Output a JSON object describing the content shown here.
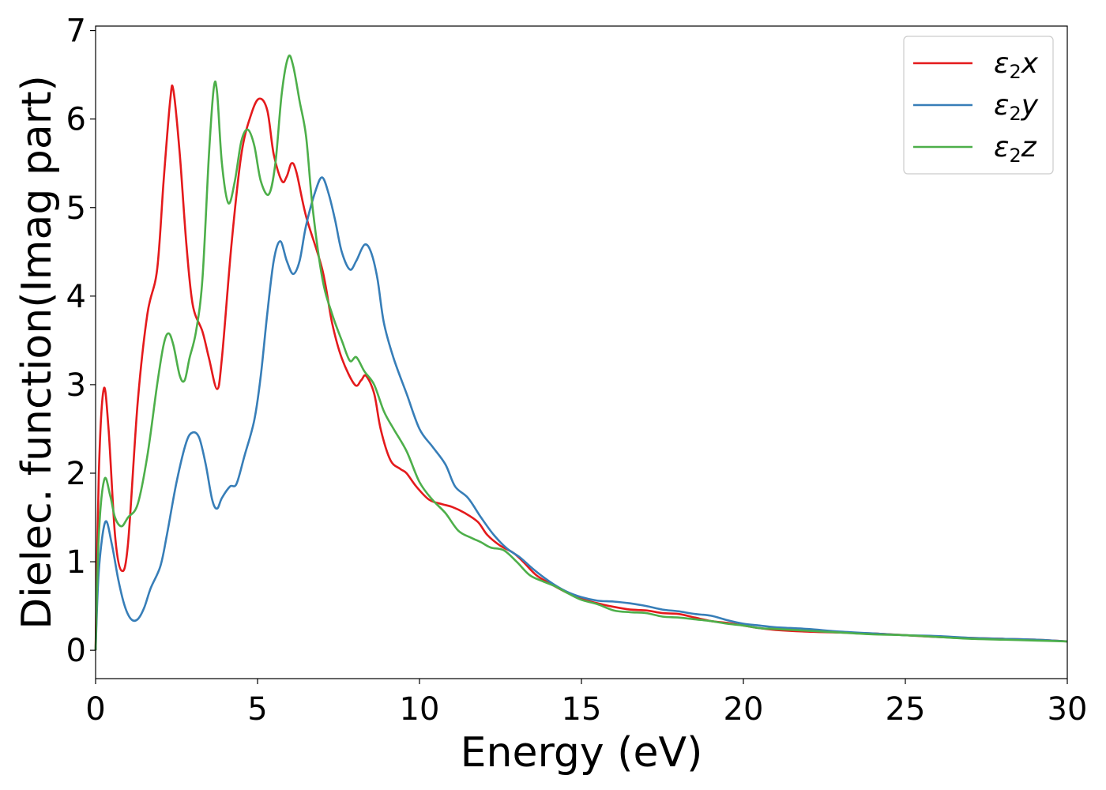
{
  "chart_data": {
    "type": "line",
    "xlabel": "Energy (eV)",
    "ylabel": "Dielec. function(Imag part)",
    "xlim": [
      0,
      30
    ],
    "ylim": [
      -0.32,
      7.05
    ],
    "xticks": [
      0,
      5,
      10,
      15,
      20,
      25,
      30
    ],
    "yticks": [
      0,
      1,
      2,
      3,
      4,
      5,
      6,
      7
    ],
    "legend_position": "top-right",
    "grid": false,
    "series": [
      {
        "name": "ε₂x",
        "legend_base": "ε",
        "legend_sub": "2",
        "legend_var": "x",
        "color": "#e41a1c",
        "points": [
          [
            0,
            0
          ],
          [
            0.1,
            2.0
          ],
          [
            0.25,
            2.95
          ],
          [
            0.4,
            2.5
          ],
          [
            0.6,
            1.3
          ],
          [
            0.8,
            0.9
          ],
          [
            1.0,
            1.2
          ],
          [
            1.3,
            2.8
          ],
          [
            1.6,
            3.8
          ],
          [
            1.9,
            4.3
          ],
          [
            2.1,
            5.3
          ],
          [
            2.3,
            6.2
          ],
          [
            2.4,
            6.33
          ],
          [
            2.6,
            5.6
          ],
          [
            2.8,
            4.6
          ],
          [
            3.0,
            3.9
          ],
          [
            3.3,
            3.6
          ],
          [
            3.5,
            3.3
          ],
          [
            3.75,
            2.95
          ],
          [
            3.9,
            3.3
          ],
          [
            4.2,
            4.6
          ],
          [
            4.5,
            5.6
          ],
          [
            4.8,
            6.05
          ],
          [
            5.05,
            6.23
          ],
          [
            5.3,
            6.1
          ],
          [
            5.5,
            5.6
          ],
          [
            5.75,
            5.3
          ],
          [
            5.9,
            5.35
          ],
          [
            6.05,
            5.5
          ],
          [
            6.2,
            5.4
          ],
          [
            6.5,
            4.9
          ],
          [
            7.0,
            4.3
          ],
          [
            7.3,
            3.7
          ],
          [
            7.6,
            3.3
          ],
          [
            8.0,
            3.0
          ],
          [
            8.2,
            3.05
          ],
          [
            8.35,
            3.1
          ],
          [
            8.6,
            2.9
          ],
          [
            8.8,
            2.5
          ],
          [
            9.1,
            2.15
          ],
          [
            9.4,
            2.05
          ],
          [
            9.6,
            2.0
          ],
          [
            9.9,
            1.85
          ],
          [
            10.3,
            1.7
          ],
          [
            10.7,
            1.65
          ],
          [
            11.0,
            1.62
          ],
          [
            11.4,
            1.55
          ],
          [
            11.8,
            1.45
          ],
          [
            12.1,
            1.3
          ],
          [
            12.5,
            1.18
          ],
          [
            12.9,
            1.1
          ],
          [
            13.2,
            1.0
          ],
          [
            13.6,
            0.85
          ],
          [
            14.0,
            0.76
          ],
          [
            14.5,
            0.66
          ],
          [
            15.0,
            0.58
          ],
          [
            15.5,
            0.53
          ],
          [
            16.0,
            0.49
          ],
          [
            16.5,
            0.46
          ],
          [
            17.0,
            0.45
          ],
          [
            17.5,
            0.42
          ],
          [
            18.0,
            0.41
          ],
          [
            18.5,
            0.37
          ],
          [
            19.0,
            0.33
          ],
          [
            19.5,
            0.31
          ],
          [
            20.0,
            0.28
          ],
          [
            20.5,
            0.25
          ],
          [
            21.0,
            0.23
          ],
          [
            22.0,
            0.21
          ],
          [
            23.0,
            0.2
          ],
          [
            24.0,
            0.19
          ],
          [
            25.0,
            0.17
          ],
          [
            26.0,
            0.15
          ],
          [
            27.0,
            0.14
          ],
          [
            28.0,
            0.13
          ],
          [
            29.0,
            0.12
          ],
          [
            30.0,
            0.1
          ]
        ]
      },
      {
        "name": "ε₂y",
        "legend_base": "ε",
        "legend_sub": "2",
        "legend_var": "y",
        "color": "#377eb8",
        "points": [
          [
            0,
            0
          ],
          [
            0.1,
            0.9
          ],
          [
            0.3,
            1.45
          ],
          [
            0.5,
            1.2
          ],
          [
            0.7,
            0.8
          ],
          [
            0.9,
            0.5
          ],
          [
            1.1,
            0.35
          ],
          [
            1.3,
            0.35
          ],
          [
            1.5,
            0.48
          ],
          [
            1.7,
            0.7
          ],
          [
            2.0,
            0.95
          ],
          [
            2.2,
            1.3
          ],
          [
            2.5,
            1.9
          ],
          [
            2.8,
            2.35
          ],
          [
            3.0,
            2.46
          ],
          [
            3.2,
            2.4
          ],
          [
            3.4,
            2.1
          ],
          [
            3.6,
            1.7
          ],
          [
            3.75,
            1.6
          ],
          [
            3.9,
            1.72
          ],
          [
            4.15,
            1.85
          ],
          [
            4.35,
            1.88
          ],
          [
            4.6,
            2.2
          ],
          [
            4.9,
            2.6
          ],
          [
            5.1,
            3.1
          ],
          [
            5.3,
            3.8
          ],
          [
            5.5,
            4.4
          ],
          [
            5.7,
            4.62
          ],
          [
            5.9,
            4.4
          ],
          [
            6.1,
            4.25
          ],
          [
            6.3,
            4.4
          ],
          [
            6.5,
            4.8
          ],
          [
            6.8,
            5.2
          ],
          [
            7.0,
            5.34
          ],
          [
            7.2,
            5.15
          ],
          [
            7.4,
            4.85
          ],
          [
            7.6,
            4.5
          ],
          [
            7.85,
            4.3
          ],
          [
            8.05,
            4.4
          ],
          [
            8.3,
            4.58
          ],
          [
            8.5,
            4.5
          ],
          [
            8.7,
            4.2
          ],
          [
            8.9,
            3.7
          ],
          [
            9.2,
            3.3
          ],
          [
            9.6,
            2.9
          ],
          [
            10.0,
            2.5
          ],
          [
            10.4,
            2.3
          ],
          [
            10.8,
            2.1
          ],
          [
            11.1,
            1.85
          ],
          [
            11.5,
            1.72
          ],
          [
            11.9,
            1.5
          ],
          [
            12.3,
            1.3
          ],
          [
            12.7,
            1.15
          ],
          [
            13.1,
            1.05
          ],
          [
            13.5,
            0.92
          ],
          [
            14.0,
            0.78
          ],
          [
            14.5,
            0.67
          ],
          [
            15.0,
            0.6
          ],
          [
            15.5,
            0.56
          ],
          [
            16.0,
            0.55
          ],
          [
            16.5,
            0.53
          ],
          [
            17.0,
            0.5
          ],
          [
            17.5,
            0.46
          ],
          [
            18.0,
            0.44
          ],
          [
            18.5,
            0.41
          ],
          [
            19.0,
            0.39
          ],
          [
            19.5,
            0.34
          ],
          [
            20.0,
            0.3
          ],
          [
            20.5,
            0.28
          ],
          [
            21.0,
            0.26
          ],
          [
            22.0,
            0.24
          ],
          [
            23.0,
            0.21
          ],
          [
            24.0,
            0.19
          ],
          [
            25.0,
            0.17
          ],
          [
            26.0,
            0.16
          ],
          [
            27.0,
            0.14
          ],
          [
            28.0,
            0.13
          ],
          [
            29.0,
            0.12
          ],
          [
            30.0,
            0.1
          ]
        ]
      },
      {
        "name": "ε₂z",
        "legend_base": "ε",
        "legend_sub": "2",
        "legend_var": "z",
        "color": "#4daf4a",
        "points": [
          [
            0,
            0
          ],
          [
            0.1,
            1.3
          ],
          [
            0.27,
            1.93
          ],
          [
            0.45,
            1.75
          ],
          [
            0.6,
            1.5
          ],
          [
            0.8,
            1.4
          ],
          [
            1.0,
            1.5
          ],
          [
            1.3,
            1.65
          ],
          [
            1.6,
            2.2
          ],
          [
            1.9,
            3.0
          ],
          [
            2.1,
            3.45
          ],
          [
            2.25,
            3.58
          ],
          [
            2.4,
            3.45
          ],
          [
            2.6,
            3.1
          ],
          [
            2.75,
            3.05
          ],
          [
            2.9,
            3.3
          ],
          [
            3.1,
            3.6
          ],
          [
            3.3,
            4.2
          ],
          [
            3.5,
            5.6
          ],
          [
            3.65,
            6.35
          ],
          [
            3.75,
            6.3
          ],
          [
            3.9,
            5.5
          ],
          [
            4.1,
            5.05
          ],
          [
            4.3,
            5.3
          ],
          [
            4.5,
            5.75
          ],
          [
            4.7,
            5.88
          ],
          [
            4.9,
            5.7
          ],
          [
            5.1,
            5.3
          ],
          [
            5.35,
            5.15
          ],
          [
            5.55,
            5.5
          ],
          [
            5.75,
            6.3
          ],
          [
            5.95,
            6.7
          ],
          [
            6.1,
            6.6
          ],
          [
            6.3,
            6.2
          ],
          [
            6.5,
            5.8
          ],
          [
            6.7,
            5.0
          ],
          [
            7.0,
            4.2
          ],
          [
            7.3,
            3.8
          ],
          [
            7.6,
            3.5
          ],
          [
            7.85,
            3.27
          ],
          [
            8.05,
            3.31
          ],
          [
            8.3,
            3.15
          ],
          [
            8.6,
            3.0
          ],
          [
            8.9,
            2.7
          ],
          [
            9.2,
            2.5
          ],
          [
            9.6,
            2.25
          ],
          [
            10.0,
            1.9
          ],
          [
            10.4,
            1.7
          ],
          [
            10.8,
            1.55
          ],
          [
            11.2,
            1.35
          ],
          [
            11.6,
            1.27
          ],
          [
            11.9,
            1.22
          ],
          [
            12.2,
            1.16
          ],
          [
            12.6,
            1.13
          ],
          [
            13.0,
            1.0
          ],
          [
            13.4,
            0.85
          ],
          [
            13.8,
            0.78
          ],
          [
            14.2,
            0.72
          ],
          [
            14.6,
            0.64
          ],
          [
            15.0,
            0.57
          ],
          [
            15.5,
            0.52
          ],
          [
            16.0,
            0.45
          ],
          [
            16.5,
            0.43
          ],
          [
            17.0,
            0.42
          ],
          [
            17.5,
            0.38
          ],
          [
            18.0,
            0.37
          ],
          [
            18.5,
            0.35
          ],
          [
            19.0,
            0.33
          ],
          [
            19.5,
            0.3
          ],
          [
            20.0,
            0.28
          ],
          [
            20.5,
            0.25
          ],
          [
            21.0,
            0.24
          ],
          [
            22.0,
            0.22
          ],
          [
            23.0,
            0.2
          ],
          [
            24.0,
            0.18
          ],
          [
            25.0,
            0.17
          ],
          [
            26.0,
            0.15
          ],
          [
            27.0,
            0.13
          ],
          [
            28.0,
            0.12
          ],
          [
            29.0,
            0.11
          ],
          [
            30.0,
            0.1
          ]
        ]
      }
    ]
  }
}
